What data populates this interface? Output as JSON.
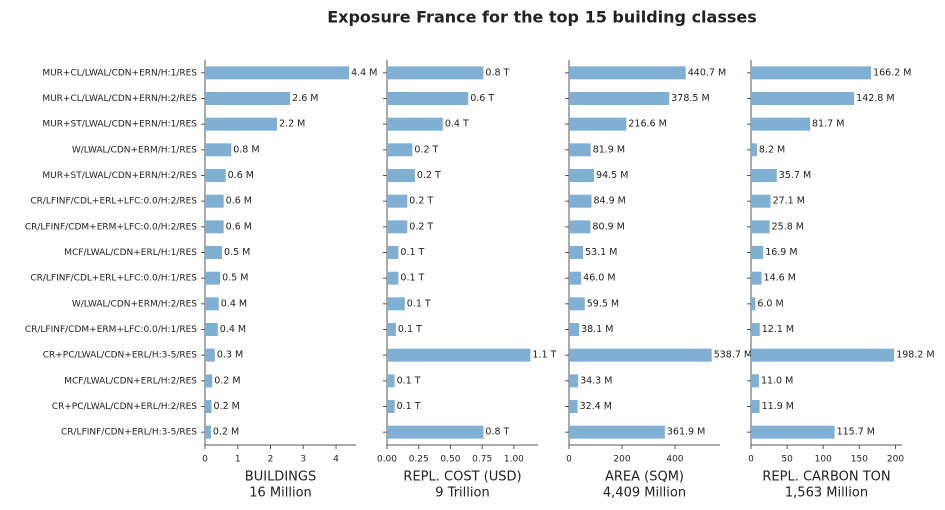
{
  "title": "Exposure France for the top 15 building classes",
  "chart_data": [
    {
      "type": "barh",
      "color": "#7fb0d4",
      "categories": [
        "MUR+CL/LWAL/CDN+ERN/H:1/RES",
        "MUR+CL/LWAL/CDN+ERN/H:2/RES",
        "MUR+ST/LWAL/CDN+ERN/H:1/RES",
        "W/LWAL/CDN+ERM/H:1/RES",
        "MUR+ST/LWAL/CDN+ERN/H:2/RES",
        "CR/LFINF/CDL+ERL+LFC:0.0/H:2/RES",
        "CR/LFINF/CDM+ERM+LFC:0.0/H:2/RES",
        "MCF/LWAL/CDN+ERL/H:1/RES",
        "CR/LFINF/CDL+ERL+LFC:0.0/H:1/RES",
        "W/LWAL/CDN+ERM/H:2/RES",
        "CR/LFINF/CDM+ERM+LFC:0.0/H:1/RES",
        "CR+PC/LWAL/CDN+ERL/H:3-5/RES",
        "MCF/LWAL/CDN+ERL/H:2/RES",
        "CR+PC/LWAL/CDN+ERL/H:2/RES",
        "CR/LFINF/CDN+ERL/H:3-5/RES"
      ],
      "values": [
        4.4,
        2.6,
        2.2,
        0.8,
        0.63,
        0.57,
        0.57,
        0.52,
        0.46,
        0.42,
        0.39,
        0.3,
        0.22,
        0.2,
        0.18
      ],
      "value_labels": [
        "4.4 M",
        "2.6 M",
        "2.2 M",
        "0.8 M",
        "0.6 M",
        "0.6 M",
        "0.6 M",
        "0.5 M",
        "0.5 M",
        "0.4 M",
        "0.4 M",
        "0.3 M",
        "0.2 M",
        "0.2 M",
        "0.2 M"
      ],
      "xlim": [
        0,
        4.61
      ],
      "xticks": [
        0,
        1,
        2,
        3,
        4
      ],
      "xlabel": [
        "BUILDINGS",
        "16 Million"
      ]
    },
    {
      "type": "barh",
      "color": "#7fb0d4",
      "values": [
        0.76,
        0.64,
        0.44,
        0.2,
        0.22,
        0.16,
        0.16,
        0.09,
        0.09,
        0.14,
        0.07,
        1.13,
        0.06,
        0.06,
        0.76
      ],
      "value_labels": [
        "0.8 T",
        "0.6 T",
        "0.4 T",
        "0.2 T",
        "0.2 T",
        "0.2 T",
        "0.2 T",
        "0.1 T",
        "0.1 T",
        "0.1 T",
        "0.1 T",
        "1.1 T",
        "0.1 T",
        "0.1 T",
        "0.8 T"
      ],
      "xlim": [
        0,
        1.19
      ],
      "xticks": [
        {
          "value": 0,
          "label": "0.00"
        },
        {
          "value": 0.25,
          "label": "0.25"
        },
        {
          "value": 0.5,
          "label": "0.50"
        },
        {
          "value": 0.75,
          "label": "0.75"
        },
        {
          "value": 1,
          "label": "1.00"
        }
      ],
      "xlabel": [
        "REPL. COST (USD)",
        "9 Trillion"
      ]
    },
    {
      "type": "barh",
      "color": "#7fb0d4",
      "values": [
        440.7,
        378.5,
        216.6,
        81.9,
        94.5,
        84.9,
        80.9,
        53.1,
        46.0,
        59.5,
        38.1,
        538.7,
        34.3,
        32.4,
        361.9
      ],
      "value_labels": [
        "440.7 M",
        "378.5 M",
        "216.6 M",
        "81.9 M",
        "94.5 M",
        "84.9 M",
        "80.9 M",
        "53.1 M",
        "46.0 M",
        "59.5 M",
        "38.1 M",
        "538.7 M",
        "34.3 M",
        "32.4 M",
        "361.9 M"
      ],
      "xlim": [
        0,
        570
      ],
      "xticks": [
        0,
        200,
        400
      ],
      "xlabel": [
        "AREA (SQM)",
        "4,409 Million"
      ]
    },
    {
      "type": "barh",
      "color": "#7fb0d4",
      "values": [
        166.2,
        142.8,
        81.7,
        8.2,
        35.7,
        27.1,
        25.8,
        16.9,
        14.6,
        6.0,
        12.1,
        198.2,
        11.0,
        11.9,
        115.7
      ],
      "value_labels": [
        "166.2 M",
        "142.8 M",
        "81.7 M",
        "8.2 M",
        "35.7 M",
        "27.1 M",
        "25.8 M",
        "16.9 M",
        "14.6 M",
        "6.0 M",
        "12.1 M",
        "198.2 M",
        "11.0 M",
        "11.9 M",
        "115.7 M"
      ],
      "xlim": [
        0,
        209
      ],
      "xticks": [
        0,
        50,
        100,
        150,
        200
      ],
      "xlabel": [
        "REPL. CARBON TON",
        "1,563 Million"
      ]
    }
  ]
}
